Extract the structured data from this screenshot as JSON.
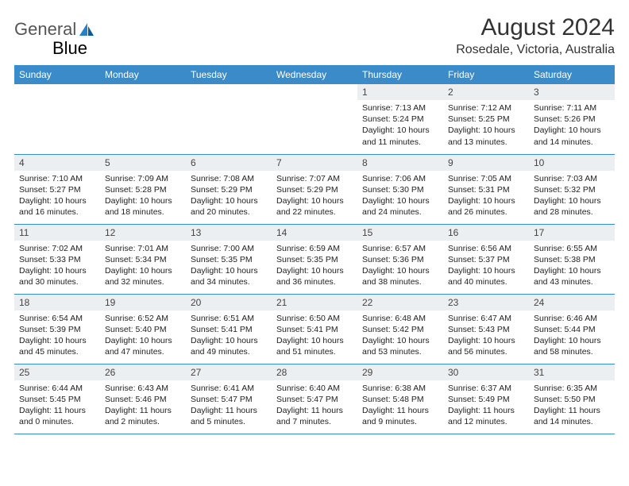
{
  "brand": {
    "part1": "General",
    "part2": "Blue"
  },
  "title": "August 2024",
  "location": "Rosedale, Victoria, Australia",
  "colors": {
    "header_bg": "#3b8bc9",
    "header_text": "#ffffff",
    "daynum_bg": "#eceff1",
    "border": "#3b8bc9",
    "title_color": "#333333",
    "body_text": "#222222"
  },
  "fonts": {
    "title_size": 30,
    "location_size": 16,
    "th_size": 12,
    "cell_size": 10.5
  },
  "weekdays": [
    "Sunday",
    "Monday",
    "Tuesday",
    "Wednesday",
    "Thursday",
    "Friday",
    "Saturday"
  ],
  "grid": [
    [
      {
        "empty": true
      },
      {
        "empty": true
      },
      {
        "empty": true
      },
      {
        "empty": true
      },
      {
        "num": "1",
        "sunrise": "7:13 AM",
        "sunset": "5:24 PM",
        "daylight": "10 hours and 11 minutes."
      },
      {
        "num": "2",
        "sunrise": "7:12 AM",
        "sunset": "5:25 PM",
        "daylight": "10 hours and 13 minutes."
      },
      {
        "num": "3",
        "sunrise": "7:11 AM",
        "sunset": "5:26 PM",
        "daylight": "10 hours and 14 minutes."
      }
    ],
    [
      {
        "num": "4",
        "sunrise": "7:10 AM",
        "sunset": "5:27 PM",
        "daylight": "10 hours and 16 minutes."
      },
      {
        "num": "5",
        "sunrise": "7:09 AM",
        "sunset": "5:28 PM",
        "daylight": "10 hours and 18 minutes."
      },
      {
        "num": "6",
        "sunrise": "7:08 AM",
        "sunset": "5:29 PM",
        "daylight": "10 hours and 20 minutes."
      },
      {
        "num": "7",
        "sunrise": "7:07 AM",
        "sunset": "5:29 PM",
        "daylight": "10 hours and 22 minutes."
      },
      {
        "num": "8",
        "sunrise": "7:06 AM",
        "sunset": "5:30 PM",
        "daylight": "10 hours and 24 minutes."
      },
      {
        "num": "9",
        "sunrise": "7:05 AM",
        "sunset": "5:31 PM",
        "daylight": "10 hours and 26 minutes."
      },
      {
        "num": "10",
        "sunrise": "7:03 AM",
        "sunset": "5:32 PM",
        "daylight": "10 hours and 28 minutes."
      }
    ],
    [
      {
        "num": "11",
        "sunrise": "7:02 AM",
        "sunset": "5:33 PM",
        "daylight": "10 hours and 30 minutes."
      },
      {
        "num": "12",
        "sunrise": "7:01 AM",
        "sunset": "5:34 PM",
        "daylight": "10 hours and 32 minutes."
      },
      {
        "num": "13",
        "sunrise": "7:00 AM",
        "sunset": "5:35 PM",
        "daylight": "10 hours and 34 minutes."
      },
      {
        "num": "14",
        "sunrise": "6:59 AM",
        "sunset": "5:35 PM",
        "daylight": "10 hours and 36 minutes."
      },
      {
        "num": "15",
        "sunrise": "6:57 AM",
        "sunset": "5:36 PM",
        "daylight": "10 hours and 38 minutes."
      },
      {
        "num": "16",
        "sunrise": "6:56 AM",
        "sunset": "5:37 PM",
        "daylight": "10 hours and 40 minutes."
      },
      {
        "num": "17",
        "sunrise": "6:55 AM",
        "sunset": "5:38 PM",
        "daylight": "10 hours and 43 minutes."
      }
    ],
    [
      {
        "num": "18",
        "sunrise": "6:54 AM",
        "sunset": "5:39 PM",
        "daylight": "10 hours and 45 minutes."
      },
      {
        "num": "19",
        "sunrise": "6:52 AM",
        "sunset": "5:40 PM",
        "daylight": "10 hours and 47 minutes."
      },
      {
        "num": "20",
        "sunrise": "6:51 AM",
        "sunset": "5:41 PM",
        "daylight": "10 hours and 49 minutes."
      },
      {
        "num": "21",
        "sunrise": "6:50 AM",
        "sunset": "5:41 PM",
        "daylight": "10 hours and 51 minutes."
      },
      {
        "num": "22",
        "sunrise": "6:48 AM",
        "sunset": "5:42 PM",
        "daylight": "10 hours and 53 minutes."
      },
      {
        "num": "23",
        "sunrise": "6:47 AM",
        "sunset": "5:43 PM",
        "daylight": "10 hours and 56 minutes."
      },
      {
        "num": "24",
        "sunrise": "6:46 AM",
        "sunset": "5:44 PM",
        "daylight": "10 hours and 58 minutes."
      }
    ],
    [
      {
        "num": "25",
        "sunrise": "6:44 AM",
        "sunset": "5:45 PM",
        "daylight": "11 hours and 0 minutes."
      },
      {
        "num": "26",
        "sunrise": "6:43 AM",
        "sunset": "5:46 PM",
        "daylight": "11 hours and 2 minutes."
      },
      {
        "num": "27",
        "sunrise": "6:41 AM",
        "sunset": "5:47 PM",
        "daylight": "11 hours and 5 minutes."
      },
      {
        "num": "28",
        "sunrise": "6:40 AM",
        "sunset": "5:47 PM",
        "daylight": "11 hours and 7 minutes."
      },
      {
        "num": "29",
        "sunrise": "6:38 AM",
        "sunset": "5:48 PM",
        "daylight": "11 hours and 9 minutes."
      },
      {
        "num": "30",
        "sunrise": "6:37 AM",
        "sunset": "5:49 PM",
        "daylight": "11 hours and 12 minutes."
      },
      {
        "num": "31",
        "sunrise": "6:35 AM",
        "sunset": "5:50 PM",
        "daylight": "11 hours and 14 minutes."
      }
    ]
  ],
  "labels": {
    "sunrise": "Sunrise: ",
    "sunset": "Sunset: ",
    "daylight": "Daylight: "
  }
}
